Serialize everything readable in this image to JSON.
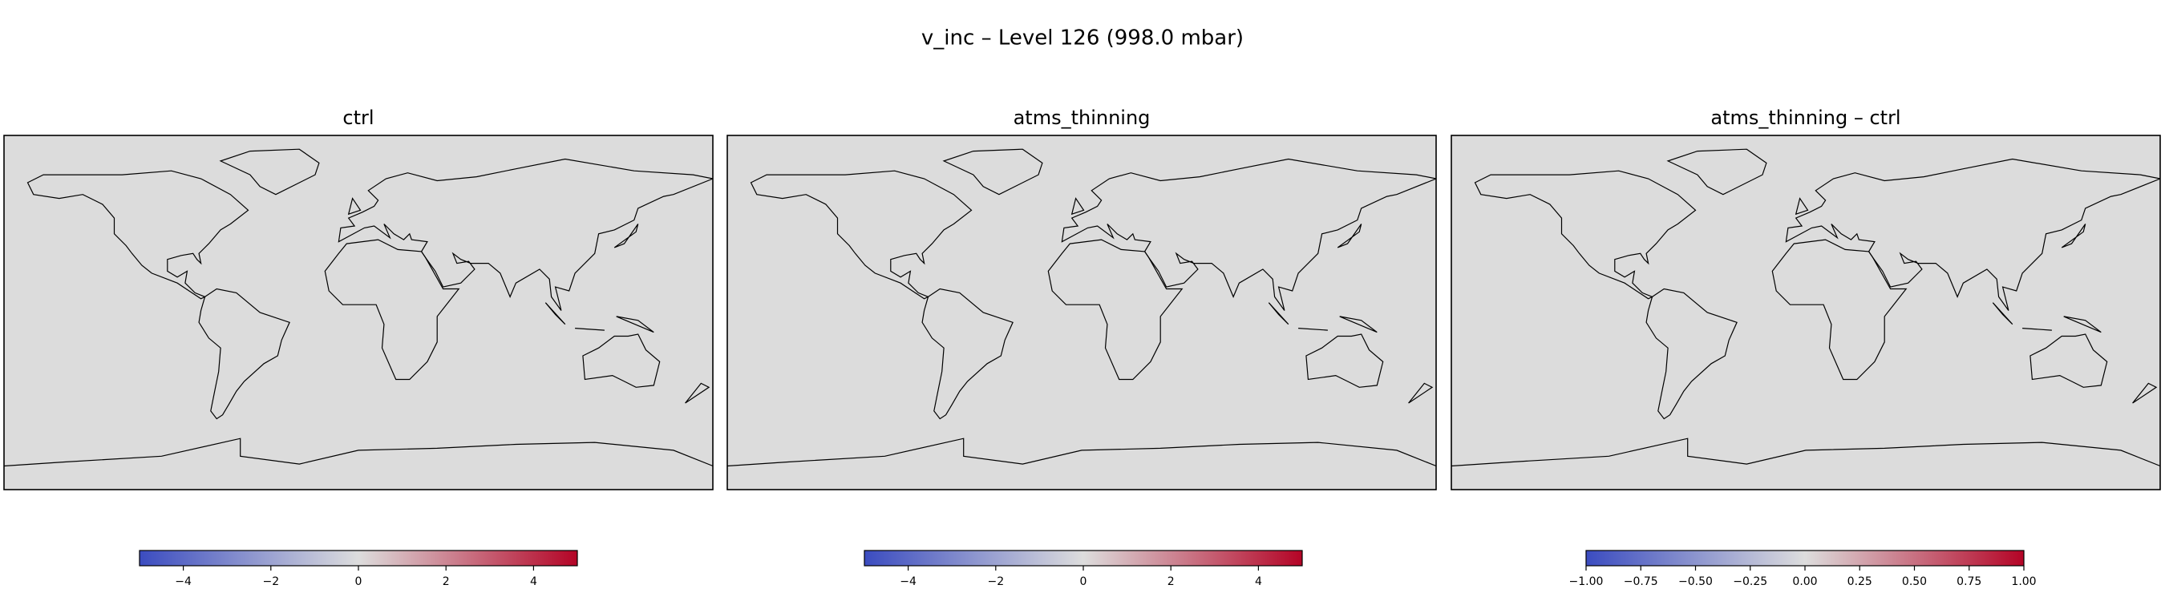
{
  "title": "v_inc – Level 126 (998.0 mbar)",
  "chart_data": [
    {
      "type": "map",
      "title": "ctrl",
      "background": "#dcdcdc",
      "colors": [
        "#3b4cc0",
        "#dddddd",
        "#b40426"
      ],
      "clim": [
        -5,
        5
      ],
      "cticks": [
        {
          "value": -4,
          "label": "−4"
        },
        {
          "value": -2,
          "label": "−2"
        },
        0,
        2,
        4
      ]
    },
    {
      "type": "map",
      "title": "atms_thinning",
      "background": "#dcdcdc",
      "colors": [
        "#3b4cc0",
        "#dddddd",
        "#b40426"
      ],
      "clim": [
        -5,
        5
      ],
      "cticks": [
        {
          "value": -4,
          "label": "−4"
        },
        {
          "value": -2,
          "label": "−2"
        },
        0,
        2,
        4
      ]
    },
    {
      "type": "map",
      "title": "atms_thinning – ctrl",
      "background": "#dcdcdc",
      "colors": [
        "#3b4cc0",
        "#dddddd",
        "#b40426"
      ],
      "clim": [
        -1,
        1
      ],
      "cticks": [
        {
          "value": -1,
          "label": "−1.00"
        },
        {
          "value": -0.75,
          "label": "−0.75"
        },
        {
          "value": -0.5,
          "label": "−0.50"
        },
        {
          "value": -0.25,
          "label": "−0.25"
        },
        {
          "value": 0,
          "label": "0.00"
        },
        0.25,
        {
          "value": 0.5,
          "label": "0.50"
        },
        0.75,
        {
          "value": 1,
          "label": "1.00"
        }
      ]
    }
  ]
}
